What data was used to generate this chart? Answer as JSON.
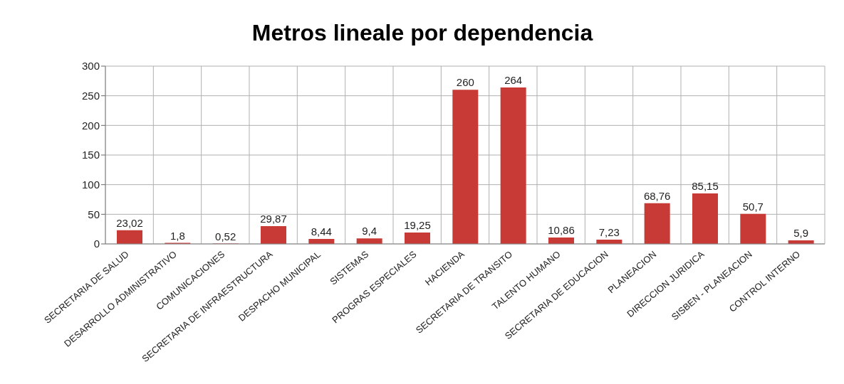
{
  "chart_data": {
    "type": "bar",
    "title": "Metros lineale por dependencia",
    "categories": [
      "SECRETARIA DE SALUD",
      "DESARROLLO ADMINISTRATIVO",
      "COMUNICACIONES",
      "SECRETARIA DE INFRAESTRUCTURA",
      "DESPACHO MUNICIPAL",
      "SISTEMAS",
      "PROGRAS ESPECIALES",
      "HACIENDA",
      "SECRETARIA DE TRANSITO",
      "TALENTO HUMANO",
      "SECRETARIA DE EDUCACION",
      "PLANEACION",
      "DIRECCION JURIDICA",
      "SISBEN - PLANEACION",
      "CONTROL INTERNO"
    ],
    "values": [
      23.02,
      1.8,
      0.52,
      29.87,
      8.44,
      9.4,
      19.25,
      260,
      264,
      10.86,
      7.23,
      68.76,
      85.15,
      50.7,
      5.9
    ],
    "value_labels": [
      "23,02",
      "1,8",
      "0,52",
      "29,87",
      "8,44",
      "9,4",
      "19,25",
      "260",
      "264",
      "10,86",
      "7,23",
      "68,76",
      "85,15",
      "50,7",
      "5,9"
    ],
    "color": "#c83a36",
    "ylim": [
      0,
      300
    ],
    "yticks": [
      0,
      50,
      100,
      150,
      200,
      250,
      300
    ],
    "grid": true
  }
}
